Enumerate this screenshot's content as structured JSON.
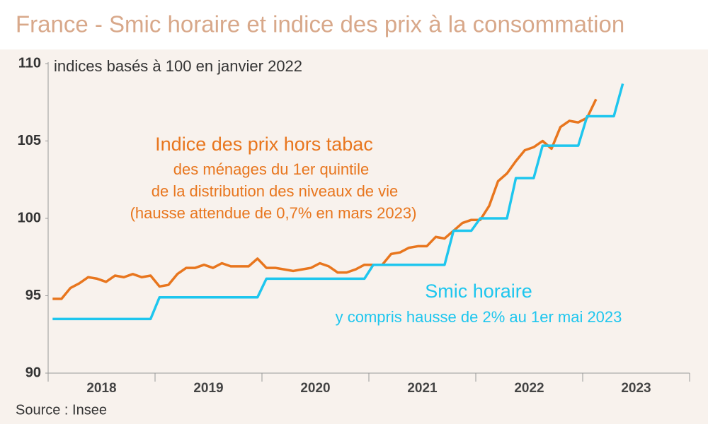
{
  "chart_data": {
    "type": "line",
    "title": "France - Smic horaire et indice des prix à la consommation",
    "y_note": "indices basés à 100 en janvier 2022",
    "source": "Source : Insee",
    "categories": [
      null,
      null,
      null,
      null,
      null,
      null,
      "2018",
      null,
      null,
      null,
      null,
      null,
      null,
      null,
      null,
      null,
      null,
      null,
      "2019",
      null,
      null,
      null,
      null,
      null,
      null,
      null,
      null,
      null,
      null,
      null,
      "2020",
      null,
      null,
      null,
      null,
      null,
      null,
      null,
      null,
      null,
      null,
      null,
      "2021",
      null,
      null,
      null,
      null,
      null,
      null,
      null,
      null,
      null,
      null,
      null,
      "2022",
      null,
      null,
      null,
      null,
      null,
      null,
      null,
      null,
      null,
      null,
      null,
      "2023",
      null,
      null,
      null,
      null,
      null
    ],
    "ylim": [
      90,
      110
    ],
    "yticks": [
      90,
      95,
      100,
      105,
      110
    ],
    "series": [
      {
        "name": "Indice des prix hors tabac",
        "color": "#e8761e",
        "annotation": [
          "des ménages du 1er quintile",
          "de la distribution des niveaux de vie",
          "(hausse attendue de 0,7% en mars 2023)"
        ],
        "values": [
          94.8,
          94.8,
          95.5,
          95.8,
          96.2,
          96.1,
          95.9,
          96.3,
          96.2,
          96.4,
          96.2,
          96.3,
          95.6,
          95.7,
          96.4,
          96.8,
          96.8,
          97.0,
          96.8,
          97.1,
          96.9,
          96.9,
          96.9,
          97.4,
          96.8,
          96.8,
          96.7,
          96.6,
          96.7,
          96.8,
          97.1,
          96.9,
          96.5,
          96.5,
          96.7,
          97.0,
          97.0,
          97.0,
          97.7,
          97.8,
          98.1,
          98.2,
          98.2,
          98.8,
          98.7,
          99.2,
          99.7,
          99.9,
          99.9,
          100.8,
          102.4,
          102.9,
          103.7,
          104.4,
          104.6,
          105.0,
          104.5,
          105.9,
          106.3,
          106.2,
          106.5,
          107.7,
          null,
          null,
          null,
          null,
          null,
          null,
          null,
          null,
          null,
          null
        ]
      },
      {
        "name": "Smic horaire",
        "color": "#1ec6ee",
        "annotation": [
          "y compris hausse de 2% au 1er mai 2023"
        ],
        "values": [
          93.5,
          93.5,
          93.5,
          93.5,
          93.5,
          93.5,
          93.5,
          93.5,
          93.5,
          93.5,
          93.5,
          93.5,
          94.9,
          94.9,
          94.9,
          94.9,
          94.9,
          94.9,
          94.9,
          94.9,
          94.9,
          94.9,
          94.9,
          94.9,
          96.1,
          96.1,
          96.1,
          96.1,
          96.1,
          96.1,
          96.1,
          96.1,
          96.1,
          96.1,
          96.1,
          96.1,
          97.0,
          97.0,
          97.0,
          97.0,
          97.0,
          97.0,
          97.0,
          97.0,
          97.0,
          99.2,
          99.2,
          99.2,
          100.0,
          100.0,
          100.0,
          100.0,
          102.6,
          102.6,
          102.6,
          104.7,
          104.7,
          104.7,
          104.7,
          104.7,
          106.6,
          106.6,
          106.6,
          106.6,
          108.7,
          null,
          null,
          null,
          null,
          null,
          null,
          null
        ]
      }
    ]
  }
}
